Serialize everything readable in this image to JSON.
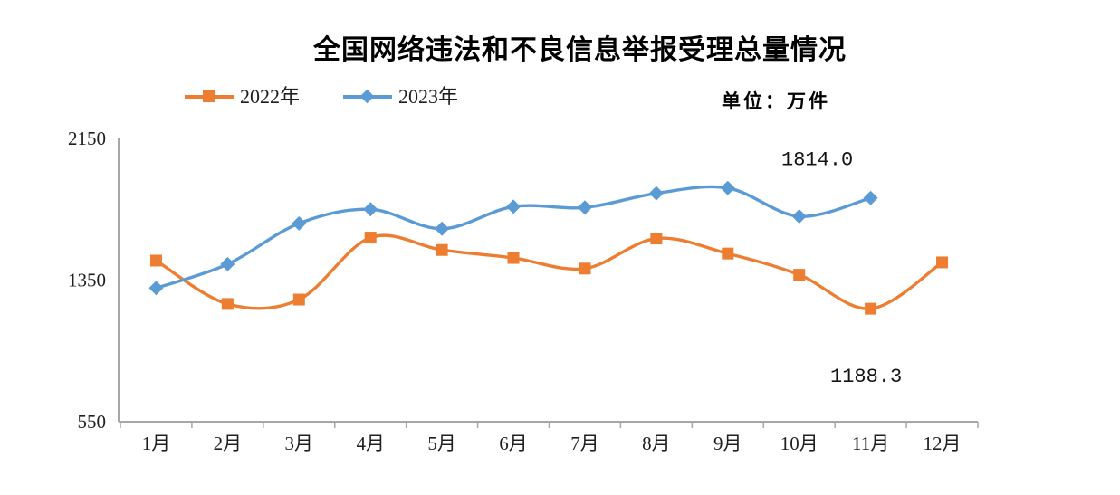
{
  "title": "全国网络违法和不良信息举报受理总量情况",
  "unit_label": "单位：万件",
  "legend": [
    {
      "label": "2022年",
      "color": "#ED7D31",
      "marker": "square"
    },
    {
      "label": "2023年",
      "color": "#5B9BD5",
      "marker": "diamond"
    }
  ],
  "colors": {
    "axis": "#A6A6A6",
    "series_2022": "#ED7D31",
    "series_2023": "#5B9BD5",
    "text": "#000000"
  },
  "chart_data": {
    "type": "line",
    "title": "全国网络违法和不良信息举报受理总量情况",
    "unit": "万件",
    "categories": [
      "1月",
      "2月",
      "3月",
      "4月",
      "5月",
      "6月",
      "7月",
      "8月",
      "9月",
      "10月",
      "11月",
      "12月"
    ],
    "series": [
      {
        "name": "2022年",
        "color": "#ED7D31",
        "marker": "square",
        "values": [
          1460,
          1215,
          1240,
          1590,
          1520,
          1475,
          1415,
          1585,
          1500,
          1380,
          1188.3,
          1450
        ]
      },
      {
        "name": "2023年",
        "color": "#5B9BD5",
        "marker": "diamond",
        "values": [
          1305,
          1440,
          1670,
          1750,
          1640,
          1765,
          1760,
          1840,
          1870,
          1710,
          1814.0
        ]
      }
    ],
    "ylim": [
      550,
      2150
    ],
    "yticks": [
      550,
      1350,
      2150
    ],
    "grid": false,
    "smoothed": true,
    "legend_position": "top-left",
    "annotations": [
      {
        "series": "2023年",
        "category": "11月",
        "text": "1814.0"
      },
      {
        "series": "2022年",
        "category": "11月",
        "text": "1188.3"
      }
    ]
  }
}
